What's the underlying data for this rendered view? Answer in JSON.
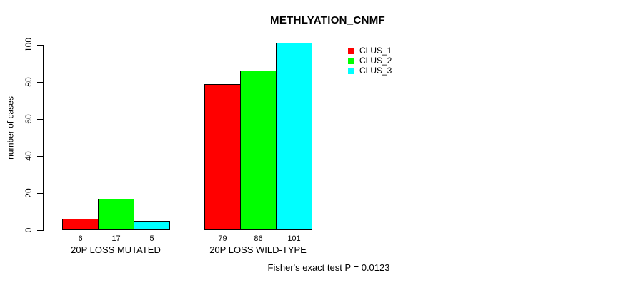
{
  "title": "METHLYATION_CNMF",
  "chart_data": {
    "type": "bar",
    "title": "METHLYATION_CNMF",
    "xlabel": "",
    "ylabel": "number of cases",
    "ylim": [
      0,
      100
    ],
    "yticks": [
      0,
      20,
      40,
      60,
      80,
      100
    ],
    "grid": false,
    "categories": [
      "20P LOSS MUTATED",
      "20P LOSS WILD-TYPE"
    ],
    "series": [
      {
        "name": "CLUS_1",
        "color": "#ff0000",
        "values": [
          6,
          79
        ]
      },
      {
        "name": "CLUS_2",
        "color": "#00ff00",
        "values": [
          17,
          86
        ]
      },
      {
        "name": "CLUS_3",
        "color": "#00ffff",
        "values": [
          5,
          101
        ]
      }
    ],
    "bar_value_labels": [
      [
        6,
        17,
        5
      ],
      [
        79,
        86,
        101
      ]
    ],
    "legend": {
      "position": "top-right",
      "entries": [
        "CLUS_1",
        "CLUS_2",
        "CLUS_3"
      ]
    },
    "annotation": "Fisher's exact test P = 0.0123"
  }
}
